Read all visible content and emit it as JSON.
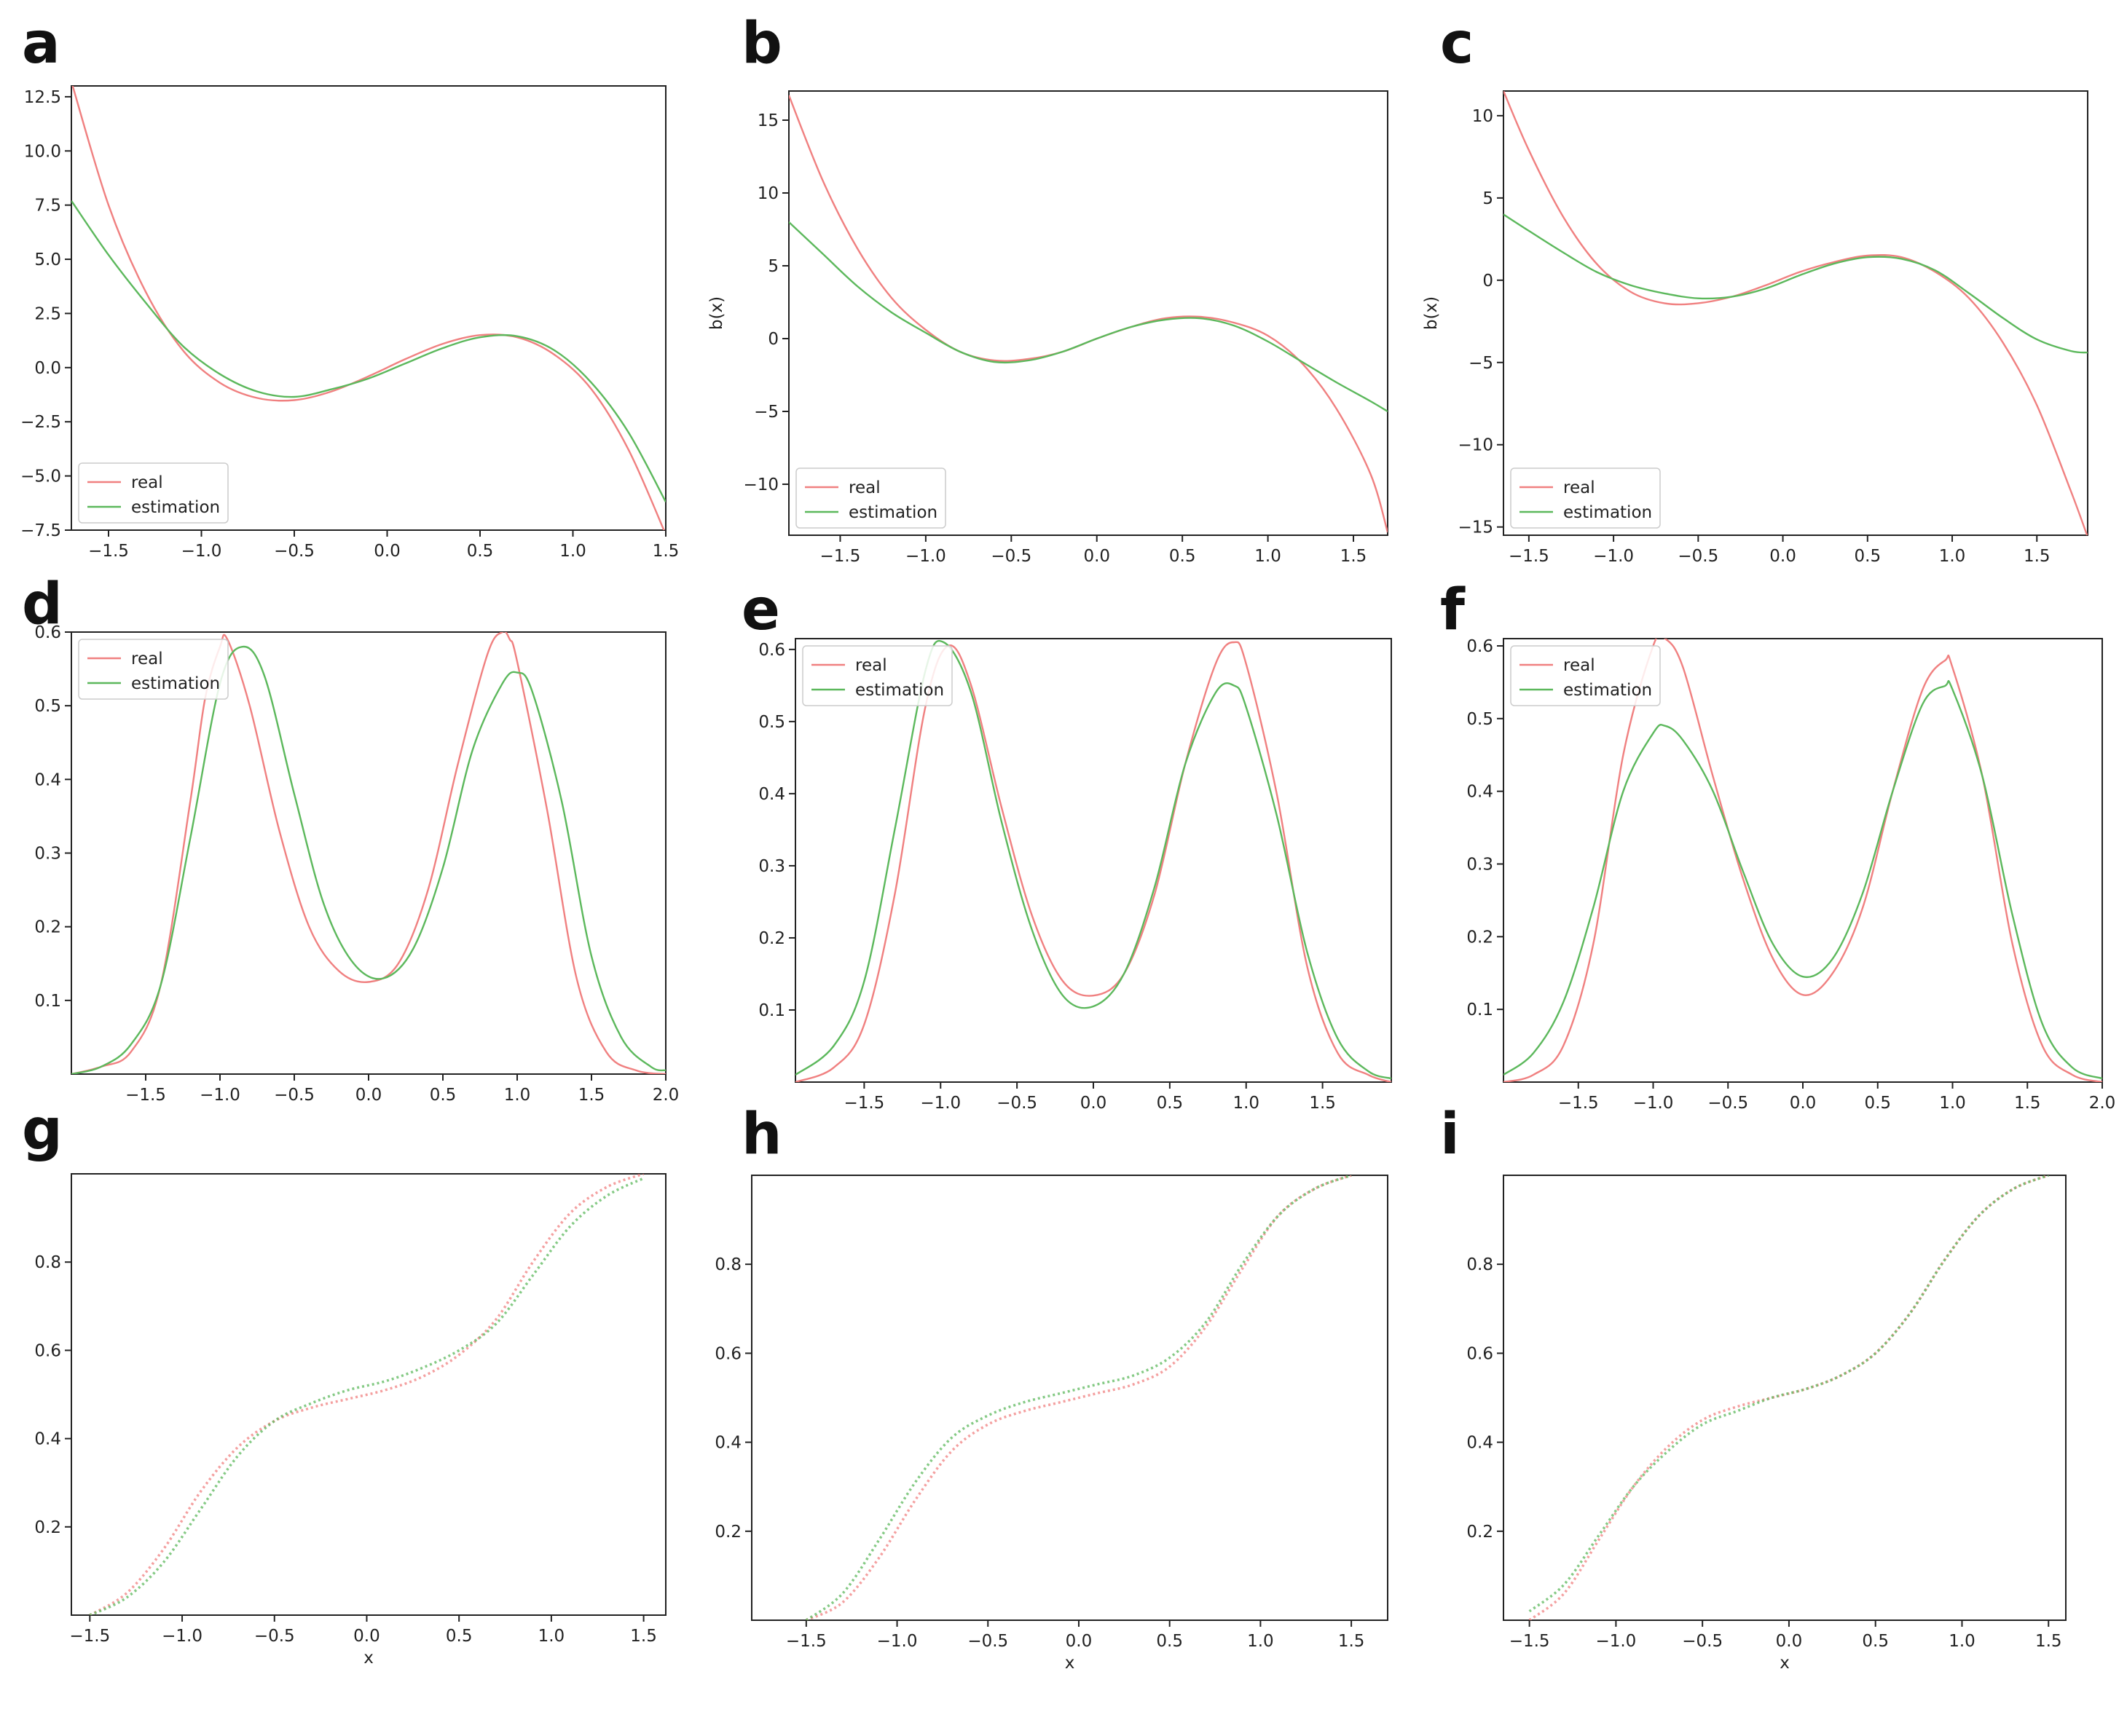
{
  "chart_data": [
    {
      "panel": "a",
      "type": "line",
      "xlim": [
        -1.7,
        1.5
      ],
      "ylim": [
        -7.5,
        13
      ],
      "xticks": [
        -1.5,
        -1.0,
        -0.5,
        0.0,
        0.5,
        1.0,
        1.5
      ],
      "yticks": [
        -7.5,
        -5.0,
        -2.5,
        0.0,
        2.5,
        5.0,
        7.5,
        10.0,
        12.5
      ],
      "xlabel": "",
      "ylabel": "",
      "legend": {
        "position": "lower-left",
        "entries": [
          "real",
          "estimation"
        ]
      },
      "series": [
        {
          "name": "real",
          "color": "#f08080",
          "x": [
            -1.7,
            -1.5,
            -1.3,
            -1.1,
            -0.9,
            -0.7,
            -0.5,
            -0.3,
            -0.1,
            0.1,
            0.3,
            0.5,
            0.7,
            0.9,
            1.1,
            1.3,
            1.5
          ],
          "y": [
            13.2,
            7.5,
            3.5,
            0.8,
            -0.7,
            -1.4,
            -1.5,
            -1.1,
            -0.4,
            0.4,
            1.1,
            1.5,
            1.4,
            0.6,
            -1.0,
            -3.8,
            -7.7
          ]
        },
        {
          "name": "estimation",
          "color": "#5cb85c",
          "x": [
            -1.7,
            -1.5,
            -1.3,
            -1.1,
            -0.9,
            -0.7,
            -0.5,
            -0.3,
            -0.1,
            0.1,
            0.3,
            0.5,
            0.7,
            0.9,
            1.1,
            1.3,
            1.5
          ],
          "y": [
            7.7,
            5.2,
            3.0,
            1.0,
            -0.3,
            -1.1,
            -1.35,
            -1.0,
            -0.5,
            0.2,
            0.9,
            1.4,
            1.45,
            0.8,
            -0.7,
            -3.0,
            -6.2
          ]
        }
      ]
    },
    {
      "panel": "b",
      "type": "line",
      "xlim": [
        -1.8,
        1.7
      ],
      "ylim": [
        -13.5,
        17
      ],
      "xticks": [
        -1.5,
        -1.0,
        -0.5,
        0.0,
        0.5,
        1.0,
        1.5
      ],
      "yticks": [
        -10,
        -5,
        0,
        5,
        10,
        15
      ],
      "xlabel": "",
      "ylabel": "b(x)",
      "legend": {
        "position": "lower-left",
        "entries": [
          "real",
          "estimation"
        ]
      },
      "series": [
        {
          "name": "real",
          "color": "#f08080",
          "x": [
            -1.8,
            -1.6,
            -1.4,
            -1.2,
            -1.0,
            -0.8,
            -0.6,
            -0.4,
            -0.2,
            0.0,
            0.2,
            0.4,
            0.6,
            0.8,
            1.0,
            1.2,
            1.4,
            1.6,
            1.7
          ],
          "y": [
            16.7,
            10.8,
            6.2,
            2.8,
            0.6,
            -0.9,
            -1.5,
            -1.4,
            -0.9,
            0.0,
            0.8,
            1.4,
            1.5,
            1.1,
            0.2,
            -1.7,
            -4.8,
            -9.3,
            -13.3
          ]
        },
        {
          "name": "estimation",
          "color": "#5cb85c",
          "x": [
            -1.8,
            -1.6,
            -1.4,
            -1.2,
            -1.0,
            -0.8,
            -0.6,
            -0.4,
            -0.2,
            0.0,
            0.2,
            0.4,
            0.6,
            0.8,
            1.0,
            1.2,
            1.4,
            1.6,
            1.7
          ],
          "y": [
            8.0,
            5.8,
            3.6,
            1.8,
            0.4,
            -0.9,
            -1.6,
            -1.5,
            -0.9,
            0.0,
            0.8,
            1.3,
            1.4,
            0.9,
            -0.2,
            -1.6,
            -3.0,
            -4.3,
            -5.0
          ]
        }
      ]
    },
    {
      "panel": "c",
      "type": "line",
      "xlim": [
        -1.65,
        1.8
      ],
      "ylim": [
        -15.5,
        11.5
      ],
      "xticks": [
        -1.5,
        -1.0,
        -0.5,
        0.0,
        0.5,
        1.0,
        1.5
      ],
      "yticks": [
        -15,
        -10,
        -5,
        0,
        5,
        10
      ],
      "xlabel": "",
      "ylabel": "b(x)",
      "legend": {
        "position": "lower-left",
        "entries": [
          "real",
          "estimation"
        ]
      },
      "series": [
        {
          "name": "real",
          "color": "#f08080",
          "x": [
            -1.65,
            -1.5,
            -1.3,
            -1.1,
            -0.9,
            -0.7,
            -0.5,
            -0.3,
            -0.1,
            0.1,
            0.3,
            0.5,
            0.7,
            0.9,
            1.1,
            1.3,
            1.5,
            1.7,
            1.8
          ],
          "y": [
            11.5,
            7.9,
            3.9,
            1.0,
            -0.7,
            -1.4,
            -1.4,
            -1.0,
            -0.3,
            0.5,
            1.1,
            1.5,
            1.4,
            0.5,
            -1.1,
            -3.8,
            -7.6,
            -12.8,
            -15.6
          ]
        },
        {
          "name": "estimation",
          "color": "#5cb85c",
          "x": [
            -1.65,
            -1.5,
            -1.3,
            -1.1,
            -0.9,
            -0.7,
            -0.5,
            -0.3,
            -0.1,
            0.1,
            0.3,
            0.5,
            0.7,
            0.9,
            1.1,
            1.3,
            1.5,
            1.7,
            1.8
          ],
          "y": [
            4.0,
            3.0,
            1.7,
            0.5,
            -0.3,
            -0.8,
            -1.1,
            -1.0,
            -0.5,
            0.3,
            1.0,
            1.4,
            1.3,
            0.6,
            -0.8,
            -2.3,
            -3.6,
            -4.3,
            -4.4
          ]
        }
      ]
    },
    {
      "panel": "d",
      "type": "line",
      "xlim": [
        -2.0,
        2.0
      ],
      "ylim": [
        0.0,
        0.6
      ],
      "xticks": [
        -1.5,
        -1.0,
        -0.5,
        0.0,
        0.5,
        1.0,
        1.5,
        2.0
      ],
      "yticks": [
        0.1,
        0.2,
        0.3,
        0.4,
        0.5,
        0.6
      ],
      "xlabel": "",
      "ylabel": "",
      "legend": {
        "position": "top-left",
        "entries": [
          "real",
          "estimation"
        ]
      },
      "series": [
        {
          "name": "real",
          "color": "#f08080",
          "x": [
            -2.0,
            -1.8,
            -1.6,
            -1.4,
            -1.2,
            -1.1,
            -1.0,
            -0.95,
            -0.8,
            -0.6,
            -0.4,
            -0.2,
            0.0,
            0.2,
            0.4,
            0.6,
            0.8,
            0.9,
            0.95,
            1.0,
            1.2,
            1.4,
            1.6,
            1.8,
            2.0
          ],
          "y": [
            0.0,
            0.01,
            0.03,
            0.12,
            0.37,
            0.51,
            0.58,
            0.59,
            0.5,
            0.33,
            0.2,
            0.14,
            0.125,
            0.15,
            0.25,
            0.42,
            0.57,
            0.6,
            0.59,
            0.56,
            0.36,
            0.13,
            0.03,
            0.005,
            0.0
          ]
        },
        {
          "name": "estimation",
          "color": "#5cb85c",
          "x": [
            -2.0,
            -1.8,
            -1.6,
            -1.4,
            -1.2,
            -1.0,
            -0.85,
            -0.7,
            -0.5,
            -0.3,
            -0.1,
            0.1,
            0.3,
            0.5,
            0.7,
            0.9,
            1.0,
            1.1,
            1.3,
            1.5,
            1.7,
            1.9,
            2.0
          ],
          "y": [
            0.0,
            0.01,
            0.04,
            0.12,
            0.32,
            0.53,
            0.58,
            0.54,
            0.38,
            0.23,
            0.15,
            0.13,
            0.17,
            0.28,
            0.44,
            0.53,
            0.545,
            0.52,
            0.37,
            0.16,
            0.05,
            0.01,
            0.005
          ]
        }
      ]
    },
    {
      "panel": "e",
      "type": "line",
      "xlim": [
        -1.95,
        1.95
      ],
      "ylim": [
        0.0,
        0.615
      ],
      "xticks": [
        -1.5,
        -1.0,
        -0.5,
        0.0,
        0.5,
        1.0,
        1.5
      ],
      "yticks": [
        0.1,
        0.2,
        0.3,
        0.4,
        0.5,
        0.6
      ],
      "xlabel": "",
      "ylabel": "",
      "legend": {
        "position": "top-left",
        "entries": [
          "real",
          "estimation"
        ]
      },
      "series": [
        {
          "name": "real",
          "color": "#f08080",
          "x": [
            -1.95,
            -1.7,
            -1.5,
            -1.3,
            -1.1,
            -0.95,
            -0.8,
            -0.6,
            -0.4,
            -0.2,
            0.0,
            0.2,
            0.4,
            0.6,
            0.8,
            0.92,
            1.0,
            1.2,
            1.4,
            1.6,
            1.8,
            1.95
          ],
          "y": [
            0.0,
            0.02,
            0.08,
            0.26,
            0.52,
            0.605,
            0.55,
            0.38,
            0.23,
            0.14,
            0.12,
            0.15,
            0.26,
            0.44,
            0.58,
            0.61,
            0.58,
            0.4,
            0.16,
            0.04,
            0.01,
            0.0
          ]
        },
        {
          "name": "estimation",
          "color": "#5cb85c",
          "x": [
            -1.95,
            -1.7,
            -1.5,
            -1.3,
            -1.1,
            -0.98,
            -0.8,
            -0.6,
            -0.4,
            -0.2,
            0.0,
            0.2,
            0.4,
            0.6,
            0.8,
            0.92,
            1.0,
            1.2,
            1.4,
            1.6,
            1.8,
            1.95
          ],
          "y": [
            0.01,
            0.05,
            0.14,
            0.35,
            0.57,
            0.61,
            0.54,
            0.36,
            0.21,
            0.12,
            0.105,
            0.15,
            0.27,
            0.44,
            0.54,
            0.55,
            0.52,
            0.37,
            0.18,
            0.06,
            0.015,
            0.005
          ]
        }
      ]
    },
    {
      "panel": "f",
      "type": "line",
      "xlim": [
        -2.0,
        2.0
      ],
      "ylim": [
        0.0,
        0.61
      ],
      "xticks": [
        -1.5,
        -1.0,
        -0.5,
        0.0,
        0.5,
        1.0,
        1.5,
        2.0
      ],
      "yticks": [
        0.1,
        0.2,
        0.3,
        0.4,
        0.5,
        0.6
      ],
      "xlabel": "",
      "ylabel": "",
      "legend": {
        "position": "top-left",
        "entries": [
          "real",
          "estimation"
        ]
      },
      "series": [
        {
          "name": "real",
          "color": "#f08080",
          "x": [
            -2.0,
            -1.8,
            -1.6,
            -1.4,
            -1.2,
            -1.0,
            -0.92,
            -0.8,
            -0.6,
            -0.4,
            -0.2,
            0.0,
            0.2,
            0.4,
            0.6,
            0.8,
            0.95,
            1.0,
            1.2,
            1.4,
            1.6,
            1.8,
            2.0
          ],
          "y": [
            0.0,
            0.01,
            0.05,
            0.19,
            0.45,
            0.6,
            0.61,
            0.57,
            0.42,
            0.28,
            0.17,
            0.12,
            0.15,
            0.24,
            0.4,
            0.54,
            0.58,
            0.57,
            0.42,
            0.19,
            0.05,
            0.01,
            0.0
          ]
        },
        {
          "name": "estimation",
          "color": "#5cb85c",
          "x": [
            -2.0,
            -1.8,
            -1.6,
            -1.4,
            -1.2,
            -1.0,
            -0.92,
            -0.8,
            -0.6,
            -0.4,
            -0.2,
            0.0,
            0.2,
            0.4,
            0.6,
            0.8,
            0.95,
            1.0,
            1.2,
            1.4,
            1.6,
            1.8,
            2.0
          ],
          "y": [
            0.01,
            0.04,
            0.11,
            0.24,
            0.4,
            0.48,
            0.49,
            0.47,
            0.4,
            0.29,
            0.19,
            0.145,
            0.17,
            0.26,
            0.4,
            0.52,
            0.545,
            0.54,
            0.42,
            0.23,
            0.08,
            0.02,
            0.005
          ]
        }
      ]
    },
    {
      "panel": "g",
      "type": "line",
      "xlim": [
        -1.6,
        1.62
      ],
      "ylim": [
        0.0,
        1.0
      ],
      "xticks": [
        -1.5,
        -1.0,
        -0.5,
        0.0,
        0.5,
        1.0,
        1.5
      ],
      "yticks": [
        0.2,
        0.4,
        0.6,
        0.8
      ],
      "xlabel": "x",
      "ylabel": "",
      "legend": {
        "position": "none",
        "entries": []
      },
      "series": [
        {
          "name": "",
          "color": "#f08080",
          "x": [
            -1.5,
            -1.3,
            -1.1,
            -0.9,
            -0.7,
            -0.5,
            -0.3,
            -0.1,
            0.1,
            0.3,
            0.5,
            0.7,
            0.9,
            1.1,
            1.3,
            1.5
          ],
          "y": [
            0.0,
            0.05,
            0.15,
            0.28,
            0.38,
            0.44,
            0.47,
            0.49,
            0.51,
            0.54,
            0.59,
            0.67,
            0.8,
            0.91,
            0.97,
            1.0
          ]
        },
        {
          "name": "",
          "color": "#5cb85c",
          "x": [
            -1.5,
            -1.3,
            -1.1,
            -0.9,
            -0.7,
            -0.5,
            -0.3,
            -0.1,
            0.1,
            0.3,
            0.5,
            0.7,
            0.9,
            1.1,
            1.3,
            1.5
          ],
          "y": [
            0.0,
            0.04,
            0.12,
            0.24,
            0.36,
            0.44,
            0.48,
            0.51,
            0.53,
            0.56,
            0.6,
            0.66,
            0.77,
            0.88,
            0.95,
            0.99
          ]
        }
      ]
    },
    {
      "panel": "h",
      "type": "line",
      "xlim": [
        -1.8,
        1.7
      ],
      "ylim": [
        0.0,
        1.0
      ],
      "xticks": [
        -1.5,
        -1.0,
        -0.5,
        0.0,
        0.5,
        1.0,
        1.5
      ],
      "yticks": [
        0.2,
        0.4,
        0.6,
        0.8
      ],
      "xlabel": "x",
      "ylabel": "",
      "legend": {
        "position": "none",
        "entries": []
      },
      "series": [
        {
          "name": "",
          "color": "#f08080",
          "x": [
            -1.5,
            -1.3,
            -1.1,
            -0.9,
            -0.7,
            -0.5,
            -0.3,
            -0.1,
            0.1,
            0.3,
            0.5,
            0.7,
            0.9,
            1.1,
            1.3,
            1.5
          ],
          "y": [
            0.0,
            0.04,
            0.14,
            0.27,
            0.38,
            0.44,
            0.47,
            0.49,
            0.51,
            0.53,
            0.57,
            0.66,
            0.79,
            0.91,
            0.97,
            1.0
          ]
        },
        {
          "name": "",
          "color": "#5cb85c",
          "x": [
            -1.5,
            -1.3,
            -1.1,
            -0.9,
            -0.7,
            -0.5,
            -0.3,
            -0.1,
            0.1,
            0.3,
            0.5,
            0.7,
            0.9,
            1.1,
            1.3,
            1.5
          ],
          "y": [
            0.0,
            0.06,
            0.18,
            0.31,
            0.41,
            0.46,
            0.49,
            0.51,
            0.53,
            0.55,
            0.59,
            0.67,
            0.8,
            0.91,
            0.97,
            1.0
          ]
        }
      ]
    },
    {
      "panel": "i",
      "type": "line",
      "xlim": [
        -1.65,
        1.6
      ],
      "ylim": [
        0.0,
        1.0
      ],
      "xticks": [
        -1.5,
        -1.0,
        -0.5,
        0.0,
        0.5,
        1.0,
        1.5
      ],
      "yticks": [
        0.2,
        0.4,
        0.6,
        0.8
      ],
      "xlabel": "x",
      "ylabel": "",
      "legend": {
        "position": "none",
        "entries": []
      },
      "series": [
        {
          "name": "",
          "color": "#f08080",
          "x": [
            -1.5,
            -1.3,
            -1.1,
            -0.9,
            -0.7,
            -0.5,
            -0.3,
            -0.1,
            0.1,
            0.3,
            0.5,
            0.7,
            0.9,
            1.1,
            1.3,
            1.5
          ],
          "y": [
            0.0,
            0.06,
            0.18,
            0.3,
            0.39,
            0.45,
            0.48,
            0.5,
            0.52,
            0.55,
            0.6,
            0.69,
            0.81,
            0.91,
            0.97,
            1.0
          ]
        },
        {
          "name": "",
          "color": "#5cb85c",
          "x": [
            -1.5,
            -1.3,
            -1.1,
            -0.9,
            -0.7,
            -0.5,
            -0.3,
            -0.1,
            0.1,
            0.3,
            0.5,
            0.7,
            0.9,
            1.1,
            1.3,
            1.5
          ],
          "y": [
            0.02,
            0.08,
            0.19,
            0.3,
            0.38,
            0.44,
            0.47,
            0.5,
            0.52,
            0.55,
            0.6,
            0.69,
            0.81,
            0.91,
            0.97,
            1.0
          ]
        }
      ]
    }
  ]
}
